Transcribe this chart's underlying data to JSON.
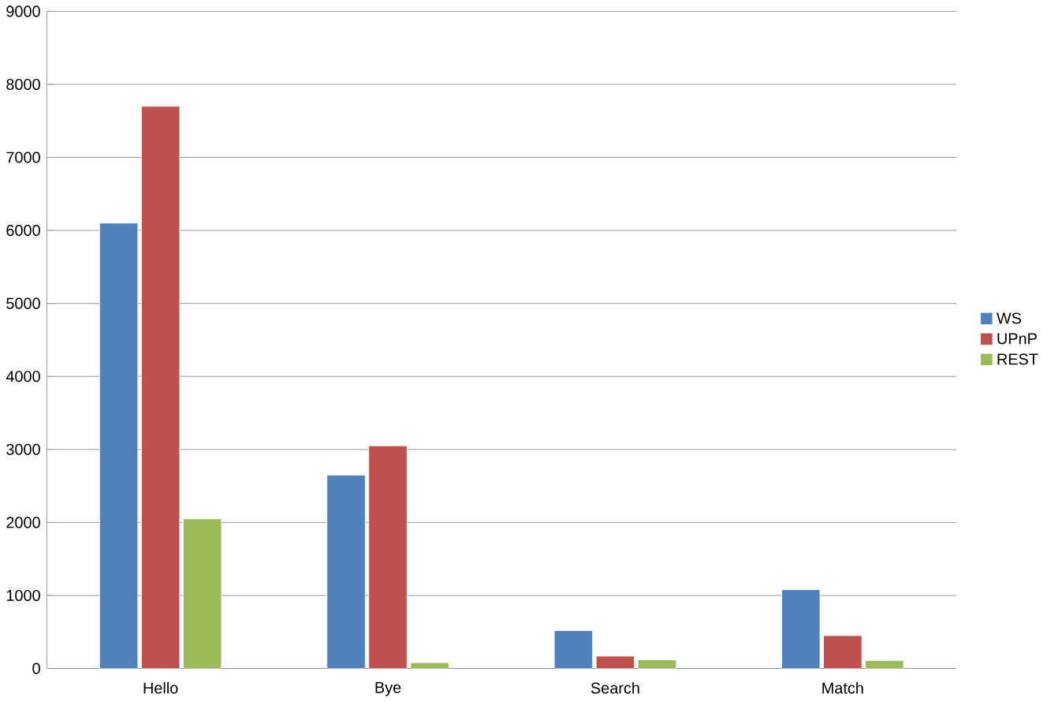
{
  "chart_data": {
    "type": "bar",
    "categories": [
      "Hello",
      "Bye",
      "Search",
      "Match"
    ],
    "series": [
      {
        "name": "WS",
        "color": "#4f81bd",
        "values": [
          6100,
          2650,
          520,
          1080
        ]
      },
      {
        "name": "UPnP",
        "color": "#c0504d",
        "values": [
          7700,
          3050,
          170,
          450
        ]
      },
      {
        "name": "REST",
        "color": "#9bbb59",
        "values": [
          2050,
          80,
          120,
          110
        ]
      }
    ],
    "ylim": [
      0,
      9000
    ],
    "yticks": [
      0,
      1000,
      2000,
      3000,
      4000,
      5000,
      6000,
      7000,
      8000,
      9000
    ],
    "grid": "y",
    "legend": "right"
  }
}
